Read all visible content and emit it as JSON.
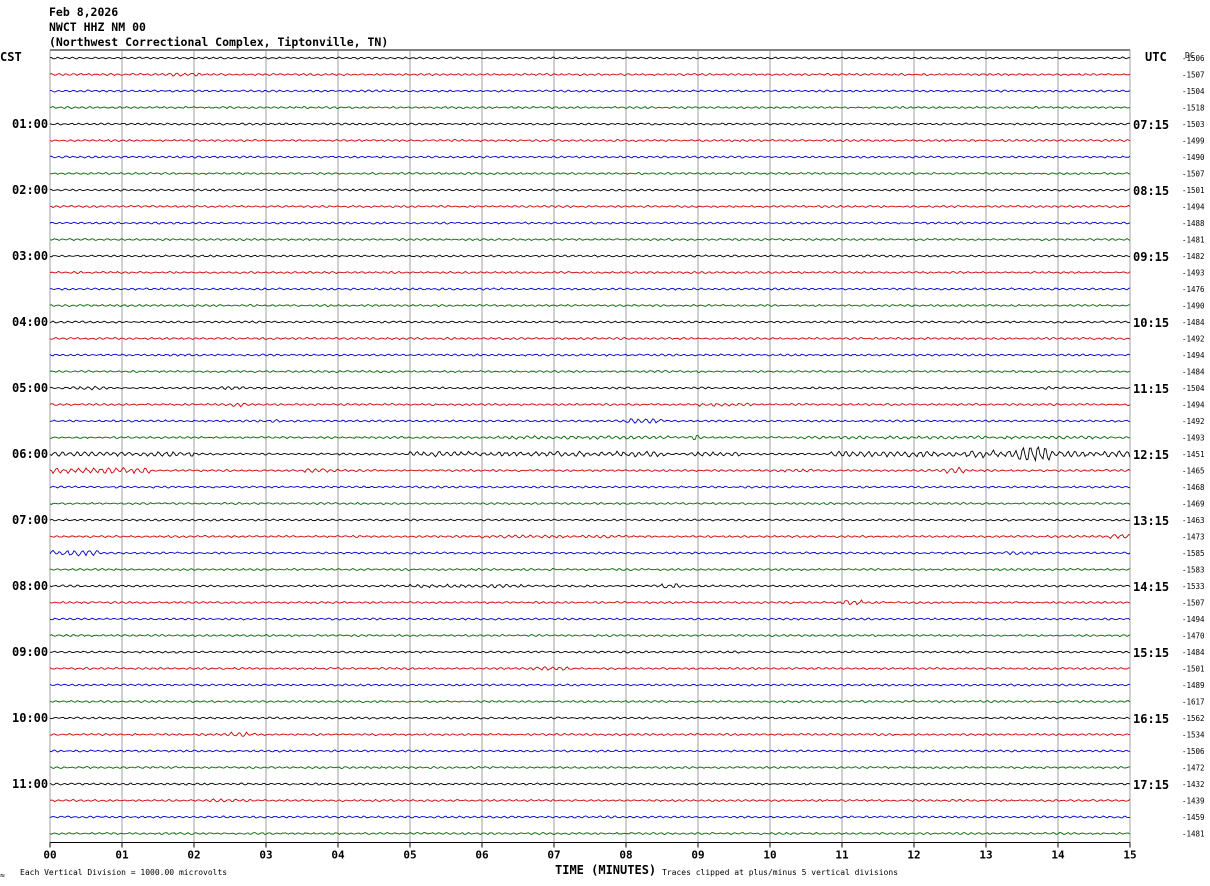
{
  "header": {
    "date": "Feb 8,2026",
    "station": "NWCT HHZ NM 00",
    "location": "(Northwest Correctional Complex, Tiptonville, TN)"
  },
  "labels": {
    "left_tz": "CST",
    "right_tz": "UTC",
    "dc": "DC",
    "xlabel": "TIME (MINUTES)",
    "scale_note": "Each Vertical Division = 1000.00 microvolts",
    "clip_note": "Traces clipped at plus/minus 5 vertical divisions",
    "corner_mark": "≈"
  },
  "colors": {
    "trace_cycle": [
      "#000000",
      "#cc0000",
      "#0000cc",
      "#006600"
    ],
    "grid": "#888888",
    "axis": "#000000"
  },
  "chart_data": {
    "type": "helicorder",
    "x_ticks": [
      "00",
      "01",
      "02",
      "03",
      "04",
      "05",
      "06",
      "07",
      "08",
      "09",
      "10",
      "11",
      "12",
      "13",
      "14",
      "15"
    ],
    "xlim": [
      0,
      15
    ],
    "line_minutes": 15,
    "left_hour_labels": [
      "01:00",
      "02:00",
      "03:00",
      "04:00",
      "05:00",
      "06:00",
      "07:00",
      "08:00",
      "09:00",
      "10:00",
      "11:00"
    ],
    "right_hour_labels": [
      "07:15",
      "08:15",
      "09:15",
      "10:15",
      "11:15",
      "12:15",
      "13:15",
      "14:15",
      "15:15",
      "16:15",
      "17:15"
    ],
    "dc_offsets": [
      "-1506",
      "-1507",
      "-1504",
      "-1518",
      "-1503",
      "-1499",
      "-1490",
      "-1507",
      "-1501",
      "-1494",
      "-1488",
      "-1481",
      "-1482",
      "-1493",
      "-1476",
      "-1490",
      "-1484",
      "-1492",
      "-1494",
      "-1484",
      "-1504",
      "-1494",
      "-1492",
      "-1493",
      "-1451",
      "-1465",
      "-1468",
      "-1469",
      "-1463",
      "-1473",
      "-1585",
      "-1583",
      "-1533",
      "-1507",
      "-1494",
      "-1470",
      "-1484",
      "-1501",
      "-1489",
      "-1617",
      "-1562",
      "-1534",
      "-1506",
      "-1472",
      "-1432",
      "-1439",
      "-1459",
      "-1481"
    ],
    "amplitude_scale": 1,
    "bursts": [
      {
        "line": 1,
        "start": 1.7,
        "end": 2.1,
        "amp": 1.6
      },
      {
        "line": 20,
        "start": 0.3,
        "end": 0.8,
        "amp": 1.6
      },
      {
        "line": 20,
        "start": 2.3,
        "end": 2.7,
        "amp": 1.8
      },
      {
        "line": 20,
        "start": 13.8,
        "end": 14.2,
        "amp": 1.5
      },
      {
        "line": 21,
        "start": 2.4,
        "end": 2.8,
        "amp": 1.8
      },
      {
        "line": 21,
        "start": 9.0,
        "end": 9.8,
        "amp": 1.5
      },
      {
        "line": 22,
        "start": 2.9,
        "end": 3.2,
        "amp": 1.5
      },
      {
        "line": 22,
        "start": 8.0,
        "end": 8.5,
        "amp": 2.0
      },
      {
        "line": 23,
        "start": 6.2,
        "end": 8.6,
        "amp": 1.5
      },
      {
        "line": 23,
        "start": 10.3,
        "end": 14.5,
        "amp": 1.4
      },
      {
        "line": 23,
        "start": 8.9,
        "end": 9.05,
        "amp": 2.8
      },
      {
        "line": 24,
        "start": 0.0,
        "end": 2.0,
        "amp": 2.0
      },
      {
        "line": 24,
        "start": 5.0,
        "end": 8.6,
        "amp": 2.4
      },
      {
        "line": 24,
        "start": 8.9,
        "end": 9.6,
        "amp": 2.0
      },
      {
        "line": 24,
        "start": 10.8,
        "end": 12.7,
        "amp": 2.6
      },
      {
        "line": 24,
        "start": 12.7,
        "end": 13.3,
        "amp": 3.5
      },
      {
        "line": 24,
        "start": 13.3,
        "end": 13.9,
        "amp": 7.5
      },
      {
        "line": 24,
        "start": 13.9,
        "end": 15.0,
        "amp": 3.0
      },
      {
        "line": 25,
        "start": 0.0,
        "end": 1.4,
        "amp": 2.5
      },
      {
        "line": 25,
        "start": 3.5,
        "end": 4.0,
        "amp": 1.8
      },
      {
        "line": 25,
        "start": 12.3,
        "end": 12.7,
        "amp": 3.2
      },
      {
        "line": 25,
        "start": 10.0,
        "end": 10.6,
        "amp": 1.5
      },
      {
        "line": 29,
        "start": 6.0,
        "end": 8.0,
        "amp": 1.3
      },
      {
        "line": 29,
        "start": 14.7,
        "end": 15.0,
        "amp": 2.2
      },
      {
        "line": 30,
        "start": 0.0,
        "end": 0.7,
        "amp": 2.6
      },
      {
        "line": 30,
        "start": 13.2,
        "end": 13.8,
        "amp": 1.5
      },
      {
        "line": 32,
        "start": 5.0,
        "end": 6.6,
        "amp": 1.5
      },
      {
        "line": 32,
        "start": 8.5,
        "end": 8.8,
        "amp": 2.2
      },
      {
        "line": 33,
        "start": 11.0,
        "end": 11.3,
        "amp": 2.2
      },
      {
        "line": 37,
        "start": 6.7,
        "end": 7.2,
        "amp": 1.6
      },
      {
        "line": 41,
        "start": 2.4,
        "end": 2.9,
        "amp": 2.0
      },
      {
        "line": 45,
        "start": 2.2,
        "end": 2.6,
        "amp": 1.5
      }
    ]
  }
}
